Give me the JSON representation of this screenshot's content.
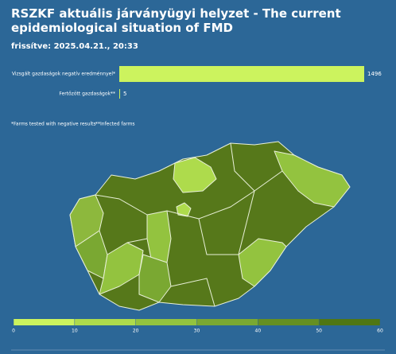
{
  "header": {
    "title": "RSZKF aktuális járványügyi helyzet - The current epidemiological situation of FMD",
    "updated": "frissítve: 2025.04.21., 20:33"
  },
  "chart_data": {
    "type": "bar",
    "orientation": "horizontal",
    "categories": [
      "Vizsgált gazdaságok negatív eredménnyel*",
      "Fertőzött gazdaságok**"
    ],
    "values": [
      1496,
      5
    ],
    "color": "#ccf35e"
  },
  "footnotes": [
    "*Farms tested with negative results",
    "**Infected farms"
  ],
  "color_scale": {
    "lim": [
      0,
      60
    ],
    "ticks": [
      0,
      10,
      20,
      30,
      40,
      50,
      60
    ],
    "colors": [
      "#ccf35e",
      "#aedb4c",
      "#93c33f",
      "#7aa832",
      "#658f22",
      "#4f7614"
    ]
  }
}
